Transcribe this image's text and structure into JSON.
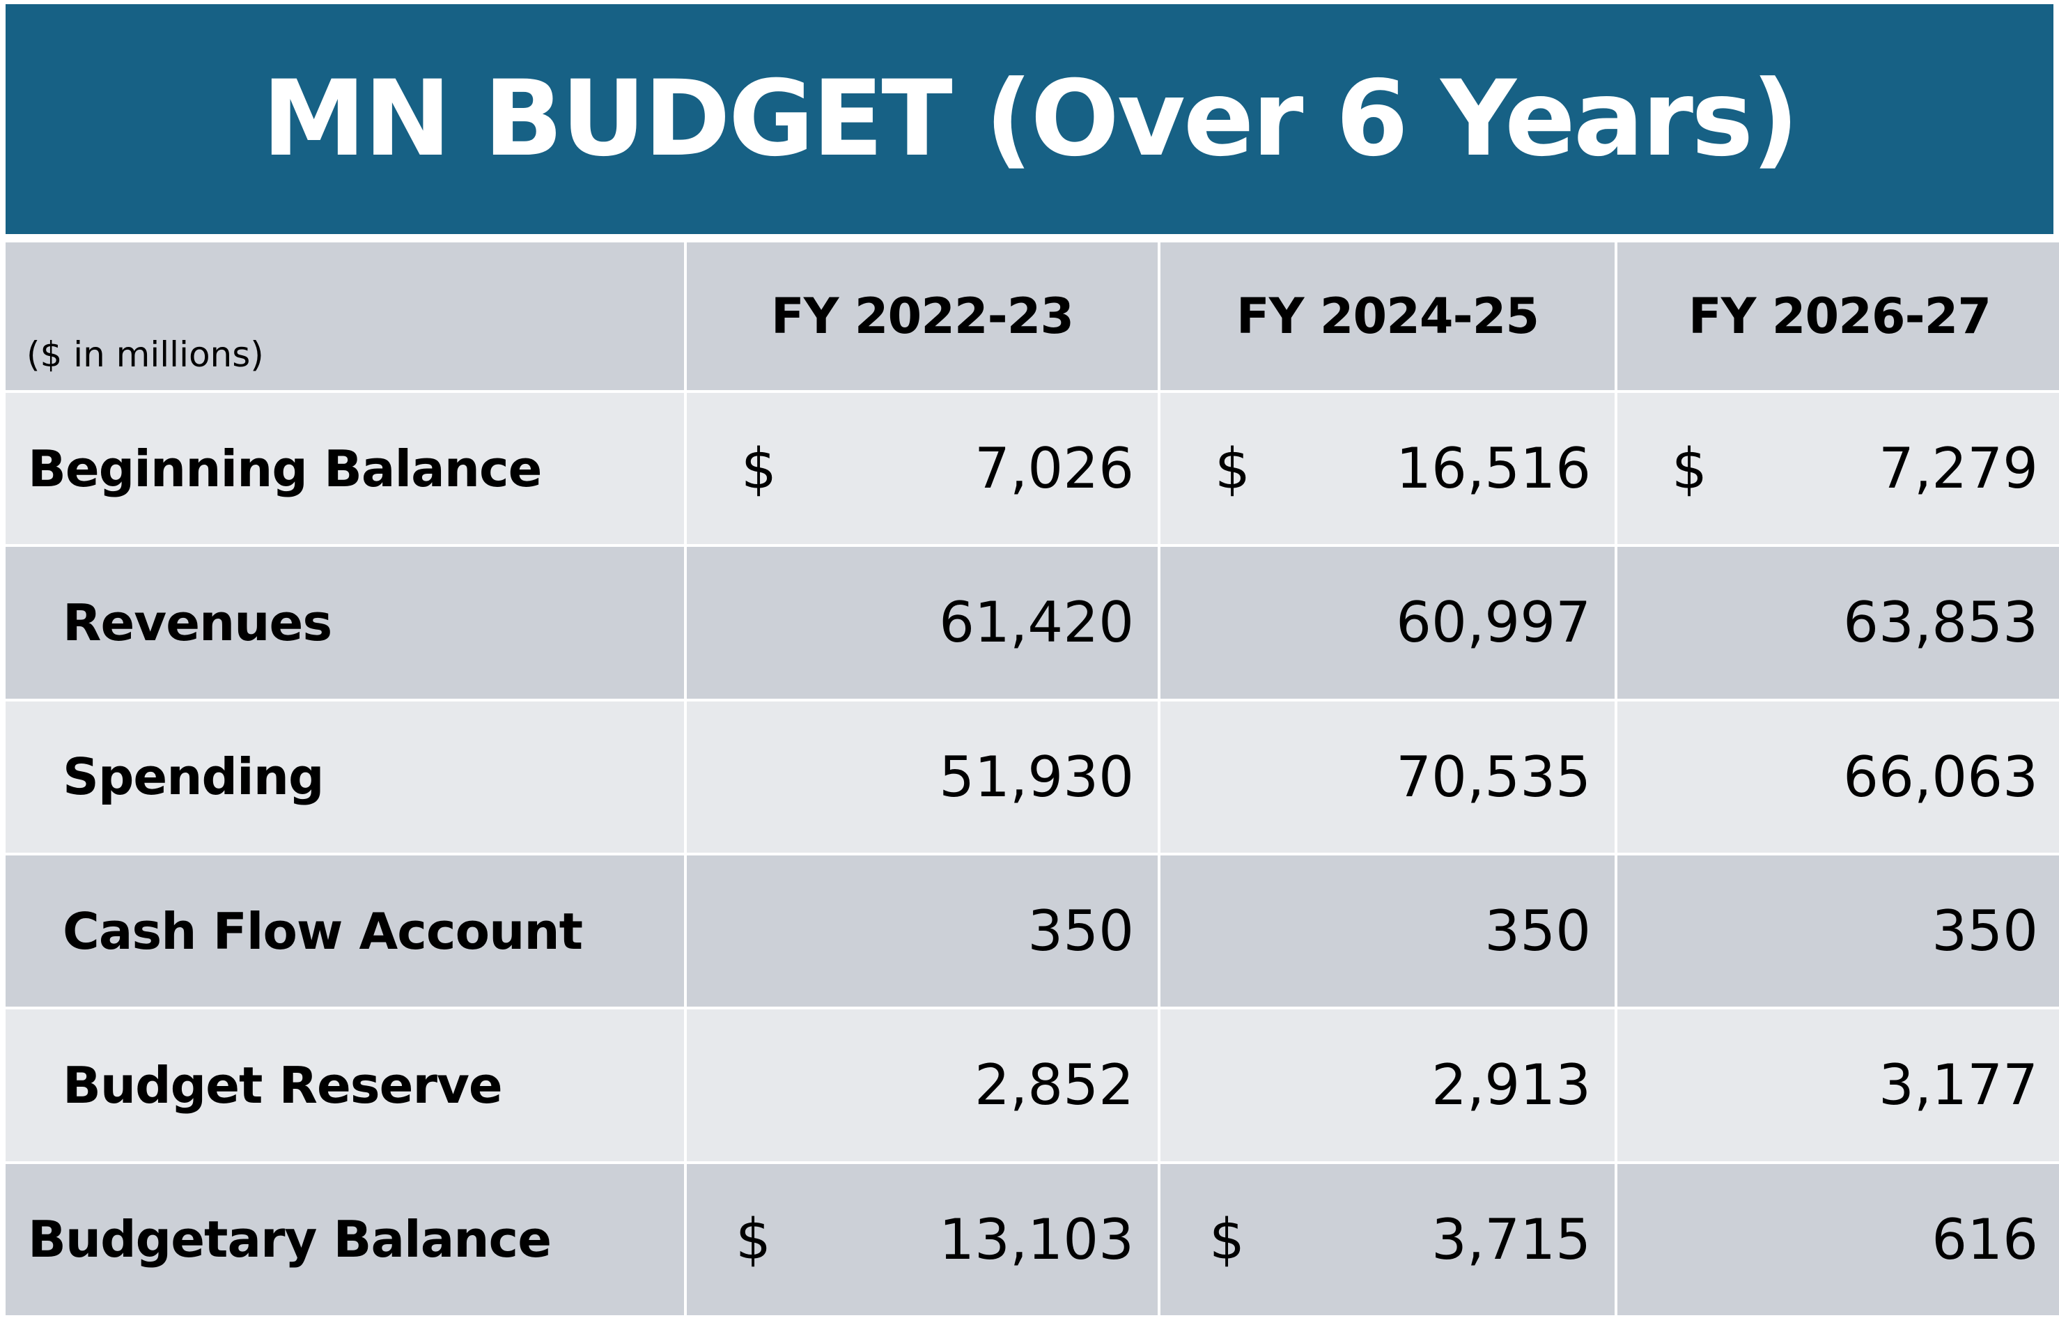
{
  "title": "MN BUDGET (Over 6 Years)",
  "chart_data": {
    "type": "table",
    "title": "MN BUDGET (Over 6 Years)",
    "units_label": "($ in millions)",
    "columns": [
      "FY 2022-23",
      "FY 2024-25",
      "FY 2026-27"
    ],
    "currency_symbol": "$",
    "rows": [
      {
        "label": "Beginning Balance",
        "indent": false,
        "values": [
          "7,026",
          "16,516",
          "7,279"
        ],
        "dollar": [
          true,
          true,
          true
        ]
      },
      {
        "label": "Revenues",
        "indent": true,
        "values": [
          "61,420",
          "60,997",
          "63,853"
        ],
        "dollar": [
          false,
          false,
          false
        ]
      },
      {
        "label": "Spending",
        "indent": true,
        "values": [
          "51,930",
          "70,535",
          "66,063"
        ],
        "dollar": [
          false,
          false,
          false
        ]
      },
      {
        "label": "Cash Flow Account",
        "indent": true,
        "values": [
          "350",
          "350",
          "350"
        ],
        "dollar": [
          false,
          false,
          false
        ]
      },
      {
        "label": "Budget Reserve",
        "indent": true,
        "values": [
          "2,852",
          "2,913",
          "3,177"
        ],
        "dollar": [
          false,
          false,
          false
        ]
      },
      {
        "label": "Budgetary Balance",
        "indent": false,
        "values": [
          "13,103",
          "3,715",
          "616"
        ],
        "dollar": [
          true,
          true,
          false
        ]
      }
    ]
  },
  "colors": {
    "banner": "#176185",
    "row_dark": "#ccd0d7",
    "row_light": "#e7e9ec",
    "gridline": "#ffffff"
  }
}
